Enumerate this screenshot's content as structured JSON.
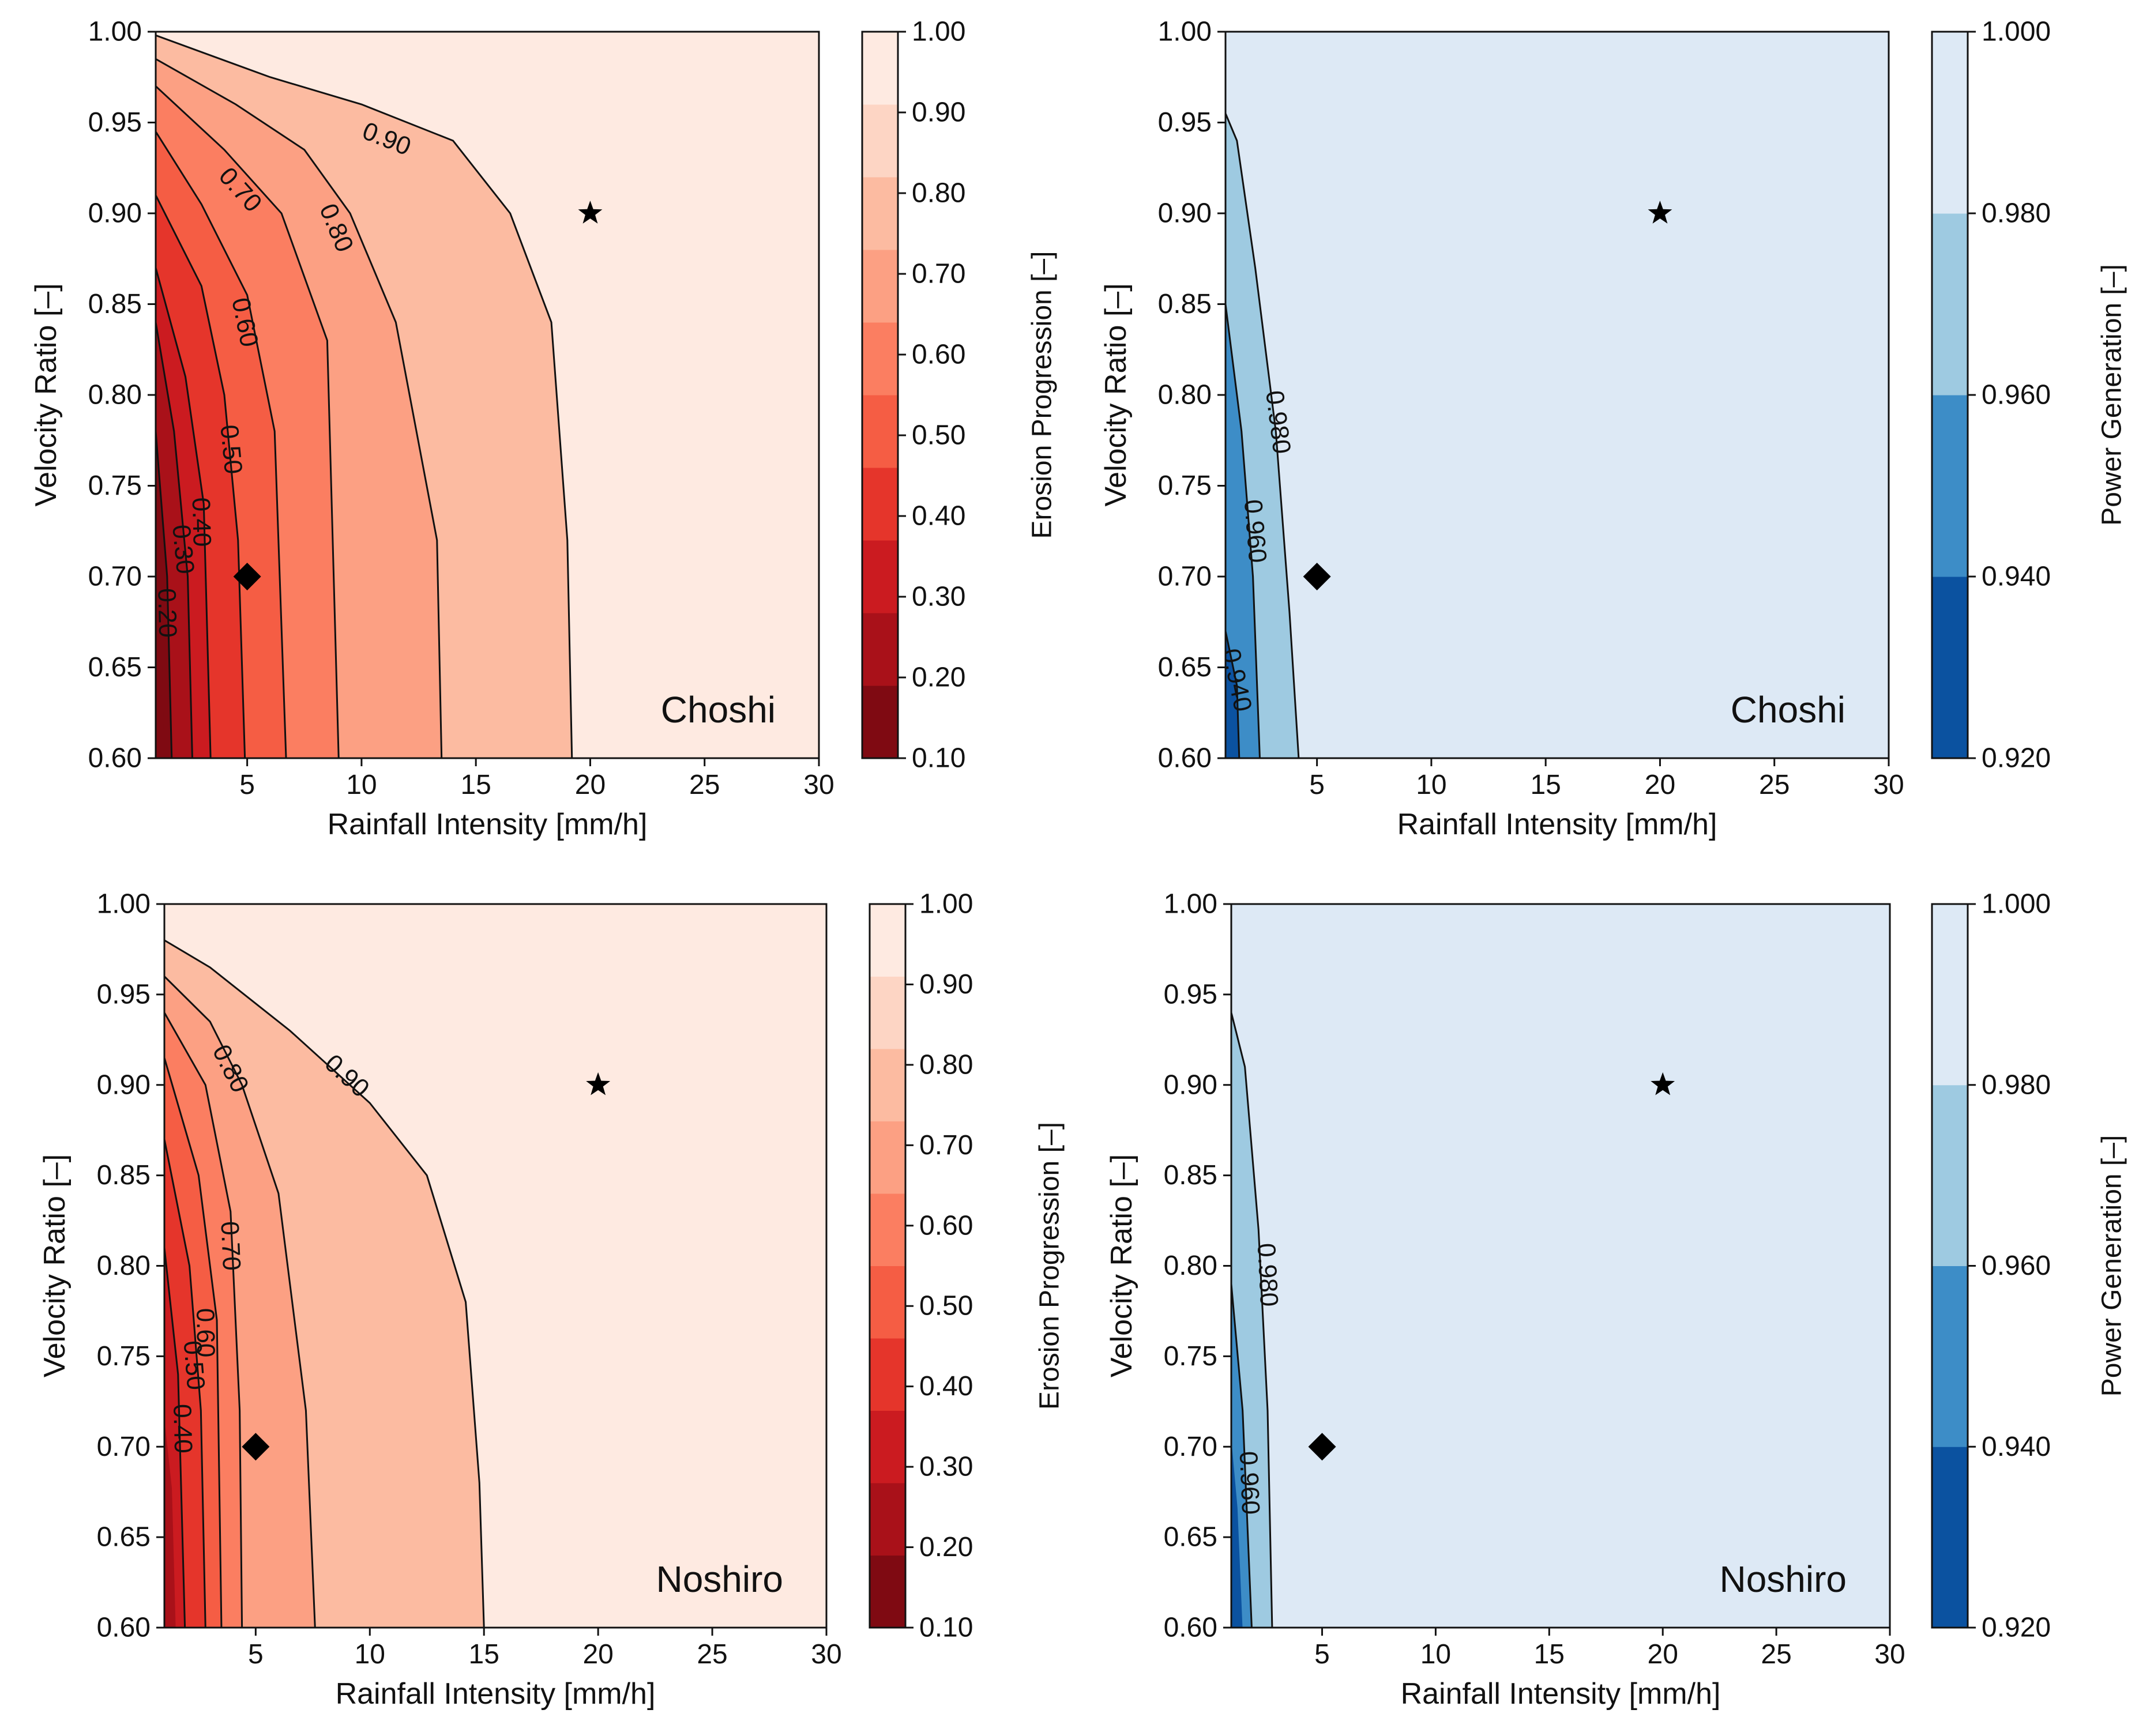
{
  "chart_data": [
    {
      "type": "contour",
      "site": "Choshi",
      "xlabel": "Rainfall Intensity [mm/h]",
      "ylabel": "Velocity Ratio [–]",
      "xlim": [
        1,
        30
      ],
      "ylim": [
        0.6,
        1.0
      ],
      "xticks": [
        "5",
        "10",
        "15",
        "20",
        "25",
        "30"
      ],
      "yticks": [
        "0.60",
        "0.65",
        "0.70",
        "0.75",
        "0.80",
        "0.85",
        "0.90",
        "0.95",
        "1.00"
      ],
      "colorbar": {
        "label": "Erosion Progression [–]",
        "ticks": [
          "0.10",
          "0.20",
          "0.30",
          "0.40",
          "0.50",
          "0.60",
          "0.70",
          "0.80",
          "0.90",
          "1.00"
        ],
        "colors": [
          "#7f0a12",
          "#a91119",
          "#cb1b20",
          "#e5352b",
          "#f55d44",
          "#fb7e61",
          "#fca083",
          "#fcbba1",
          "#fdd5c4",
          "#feeae1"
        ]
      },
      "contours": [
        {
          "level": "0.20",
          "label_at": [
            1.5,
            0.68
          ],
          "points": [
            [
              1,
              0.78
            ],
            [
              1.5,
              0.7
            ],
            [
              1.7,
              0.6
            ]
          ]
        },
        {
          "level": "0.30",
          "label_at": [
            2.2,
            0.715
          ],
          "points": [
            [
              1,
              0.84
            ],
            [
              1.8,
              0.78
            ],
            [
              2.4,
              0.7
            ],
            [
              2.6,
              0.6
            ]
          ]
        },
        {
          "level": "0.40",
          "label_at": [
            3.0,
            0.73
          ],
          "points": [
            [
              1,
              0.87
            ],
            [
              2.3,
              0.81
            ],
            [
              3.1,
              0.74
            ],
            [
              3.4,
              0.6
            ]
          ]
        },
        {
          "level": "0.50",
          "label_at": [
            4.3,
            0.77
          ],
          "points": [
            [
              1,
              0.91
            ],
            [
              3.0,
              0.86
            ],
            [
              4.0,
              0.8
            ],
            [
              4.6,
              0.72
            ],
            [
              4.9,
              0.6
            ]
          ]
        },
        {
          "level": "0.60",
          "label_at": [
            4.9,
            0.84
          ],
          "points": [
            [
              1,
              0.945
            ],
            [
              3.0,
              0.905
            ],
            [
              5.0,
              0.855
            ],
            [
              6.2,
              0.78
            ],
            [
              6.7,
              0.6
            ]
          ]
        },
        {
          "level": "0.70",
          "label_at": [
            4.7,
            0.913
          ],
          "points": [
            [
              1,
              0.97
            ],
            [
              4.0,
              0.935
            ],
            [
              6.5,
              0.9
            ],
            [
              8.5,
              0.83
            ],
            [
              9.0,
              0.6
            ]
          ]
        },
        {
          "level": "0.80",
          "label_at": [
            8.9,
            0.892
          ],
          "points": [
            [
              1,
              0.985
            ],
            [
              4.5,
              0.96
            ],
            [
              7.5,
              0.935
            ],
            [
              9.5,
              0.9
            ],
            [
              11.5,
              0.84
            ],
            [
              13.3,
              0.72
            ],
            [
              13.5,
              0.6
            ]
          ]
        },
        {
          "level": "0.90",
          "label_at": [
            11.1,
            0.941
          ],
          "points": [
            [
              1,
              0.998
            ],
            [
              6.0,
              0.975
            ],
            [
              10.0,
              0.96
            ],
            [
              14.0,
              0.94
            ],
            [
              16.5,
              0.9
            ],
            [
              18.3,
              0.84
            ],
            [
              19.0,
              0.72
            ],
            [
              19.2,
              0.6
            ]
          ]
        }
      ],
      "markers": [
        {
          "symbol": "star",
          "x": 20,
          "y": 0.9
        },
        {
          "symbol": "diamond",
          "x": 5,
          "y": 0.7
        }
      ]
    },
    {
      "type": "contour",
      "site": "Choshi",
      "xlabel": "Rainfall Intensity [mm/h]",
      "ylabel": "Velocity Ratio [–]",
      "xlim": [
        1,
        30
      ],
      "ylim": [
        0.6,
        1.0
      ],
      "xticks": [
        "5",
        "10",
        "15",
        "20",
        "25",
        "30"
      ],
      "yticks": [
        "0.60",
        "0.65",
        "0.70",
        "0.75",
        "0.80",
        "0.85",
        "0.90",
        "0.95",
        "1.00"
      ],
      "colorbar": {
        "label": "Power Generation [–]",
        "ticks": [
          "0.920",
          "0.940",
          "0.960",
          "0.980",
          "1.000"
        ],
        "colors": [
          "#0b52a0",
          "#3d8dc7",
          "#9ecae1",
          "#dde9f5"
        ]
      },
      "contours": [
        {
          "level": "0.940",
          "label_at": [
            1.5,
            0.643
          ],
          "points": [
            [
              1,
              0.67
            ],
            [
              1.5,
              0.64
            ],
            [
              1.6,
              0.6
            ]
          ]
        },
        {
          "level": "0.960",
          "label_at": [
            2.3,
            0.725
          ],
          "points": [
            [
              1,
              0.85
            ],
            [
              1.7,
              0.78
            ],
            [
              2.2,
              0.7
            ],
            [
              2.5,
              0.6
            ]
          ]
        },
        {
          "level": "0.980",
          "label_at": [
            3.3,
            0.785
          ],
          "points": [
            [
              1,
              0.955
            ],
            [
              1.5,
              0.94
            ],
            [
              2.3,
              0.87
            ],
            [
              3.2,
              0.78
            ],
            [
              3.8,
              0.68
            ],
            [
              4.2,
              0.6
            ]
          ]
        }
      ],
      "markers": [
        {
          "symbol": "star",
          "x": 20,
          "y": 0.9
        },
        {
          "symbol": "diamond",
          "x": 5,
          "y": 0.7
        }
      ]
    },
    {
      "type": "contour",
      "site": "Noshiro",
      "xlabel": "Rainfall Intensity [mm/h]",
      "ylabel": "Velocity Ratio [–]",
      "xlim": [
        1,
        30
      ],
      "ylim": [
        0.6,
        1.0
      ],
      "xticks": [
        "5",
        "10",
        "15",
        "20",
        "25",
        "30"
      ],
      "yticks": [
        "0.60",
        "0.65",
        "0.70",
        "0.75",
        "0.80",
        "0.85",
        "0.90",
        "0.95",
        "1.00"
      ],
      "colorbar": {
        "label": "Erosion Progression [–]",
        "ticks": [
          "0.10",
          "0.20",
          "0.30",
          "0.40",
          "0.50",
          "0.60",
          "0.70",
          "0.80",
          "0.90",
          "1.00"
        ],
        "colors": [
          "#7f0a12",
          "#a91119",
          "#cb1b20",
          "#e5352b",
          "#f55d44",
          "#fb7e61",
          "#fca083",
          "#fcbba1",
          "#fdd5c4",
          "#feeae1"
        ]
      },
      "contours": [
        {
          "level": "0.40",
          "label_at": [
            1.8,
            0.71
          ],
          "points": [
            [
              1,
              0.81
            ],
            [
              1.6,
              0.74
            ],
            [
              1.9,
              0.6
            ]
          ]
        },
        {
          "level": "0.50",
          "label_at": [
            2.3,
            0.745
          ],
          "points": [
            [
              1,
              0.87
            ],
            [
              2.1,
              0.8
            ],
            [
              2.6,
              0.72
            ],
            [
              2.8,
              0.6
            ]
          ]
        },
        {
          "level": "0.60",
          "label_at": [
            2.8,
            0.763
          ],
          "points": [
            [
              1,
              0.915
            ],
            [
              2.5,
              0.85
            ],
            [
              3.3,
              0.77
            ],
            [
              3.5,
              0.6
            ]
          ]
        },
        {
          "level": "0.70",
          "label_at": [
            3.9,
            0.811
          ],
          "points": [
            [
              1,
              0.94
            ],
            [
              2.8,
              0.9
            ],
            [
              3.9,
              0.83
            ],
            [
              4.3,
              0.72
            ],
            [
              4.4,
              0.6
            ]
          ]
        },
        {
          "level": "0.80",
          "label_at": [
            3.9,
            0.909
          ],
          "points": [
            [
              1,
              0.96
            ],
            [
              3.0,
              0.935
            ],
            [
              4.4,
              0.9
            ],
            [
              6.0,
              0.84
            ],
            [
              7.2,
              0.72
            ],
            [
              7.6,
              0.6
            ]
          ]
        },
        {
          "level": "0.90",
          "label_at": [
            9.0,
            0.905
          ],
          "points": [
            [
              1,
              0.98
            ],
            [
              3.0,
              0.965
            ],
            [
              6.5,
              0.93
            ],
            [
              10.0,
              0.89
            ],
            [
              12.5,
              0.85
            ],
            [
              14.2,
              0.78
            ],
            [
              14.8,
              0.68
            ],
            [
              15.0,
              0.6
            ]
          ]
        }
      ],
      "markers": [
        {
          "symbol": "star",
          "x": 20,
          "y": 0.9
        },
        {
          "symbol": "diamond",
          "x": 5,
          "y": 0.7
        }
      ]
    },
    {
      "type": "contour",
      "site": "Noshiro",
      "xlabel": "Rainfall Intensity [mm/h]",
      "ylabel": "Velocity Ratio [–]",
      "xlim": [
        1,
        30
      ],
      "ylim": [
        0.6,
        1.0
      ],
      "xticks": [
        "5",
        "10",
        "15",
        "20",
        "25",
        "30"
      ],
      "yticks": [
        "0.60",
        "0.65",
        "0.70",
        "0.75",
        "0.80",
        "0.85",
        "0.90",
        "0.95",
        "1.00"
      ],
      "colorbar": {
        "label": "Power Generation [–]",
        "ticks": [
          "0.920",
          "0.940",
          "0.960",
          "0.980",
          "1.000"
        ],
        "colors": [
          "#0b52a0",
          "#3d8dc7",
          "#9ecae1",
          "#dde9f5"
        ]
      },
      "contours": [
        {
          "level": "0.960",
          "label_at": [
            1.8,
            0.68
          ],
          "points": [
            [
              1,
              0.79
            ],
            [
              1.5,
              0.72
            ],
            [
              1.9,
              0.6
            ]
          ]
        },
        {
          "level": "0.980",
          "label_at": [
            2.6,
            0.795
          ],
          "points": [
            [
              1,
              0.94
            ],
            [
              1.6,
              0.91
            ],
            [
              2.2,
              0.82
            ],
            [
              2.6,
              0.72
            ],
            [
              2.8,
              0.6
            ]
          ]
        }
      ],
      "markers": [
        {
          "symbol": "star",
          "x": 20,
          "y": 0.9
        },
        {
          "symbol": "diamond",
          "x": 5,
          "y": 0.7
        }
      ]
    }
  ]
}
